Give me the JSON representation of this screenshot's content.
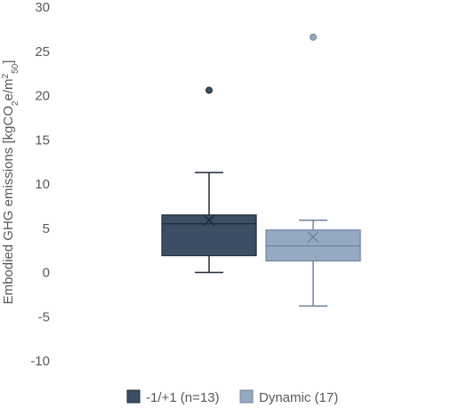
{
  "chart_data": {
    "type": "boxplot",
    "ylabel": {
      "prefix": "Embodied GHG emissions [kgCO",
      "sub1": "2",
      "mid": "e/m",
      "sup": "2",
      "sub2": "50",
      "suffix": "]"
    },
    "ylim": [
      -10,
      30
    ],
    "yticks": [
      -10,
      -5,
      0,
      5,
      10,
      15,
      20,
      25,
      30
    ],
    "grid": false,
    "legend_position": "bottom",
    "series": [
      {
        "name": "-1/+1 (n=13)",
        "color": "#3b4e63",
        "whisker_low": 0,
        "q1": 1.9,
        "median": 5.5,
        "q3": 6.5,
        "whisker_high": 11.3,
        "mean": 5.9,
        "outliers": [
          20.6
        ]
      },
      {
        "name": "Dynamic (17)",
        "color": "#95a9c3",
        "whisker_low": -3.8,
        "q1": 1.3,
        "median": 3.0,
        "q3": 4.8,
        "whisker_high": 5.9,
        "mean": 4.0,
        "outliers": [
          26.6
        ]
      }
    ]
  }
}
